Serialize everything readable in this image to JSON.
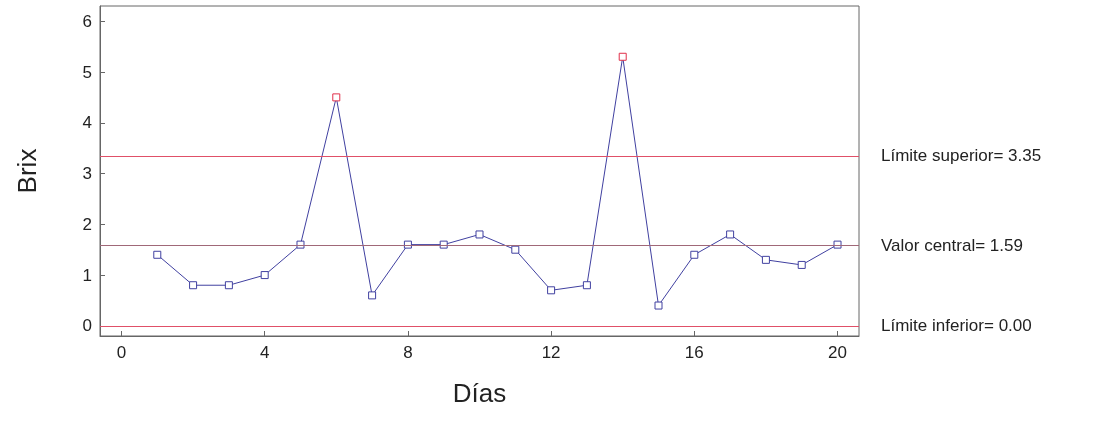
{
  "chart_data": {
    "type": "line",
    "xlabel": "Días",
    "ylabel": "Brix",
    "x": [
      1,
      2,
      3,
      4,
      5,
      6,
      7,
      8,
      9,
      10,
      11,
      12,
      13,
      14,
      15,
      16,
      17,
      18,
      19,
      20
    ],
    "series": [
      {
        "color": "#4040a0",
        "values": [
          1.4,
          0.8,
          0.8,
          1.0,
          1.6,
          4.5,
          0.6,
          1.6,
          1.6,
          1.8,
          1.5,
          0.7,
          0.8,
          5.3,
          0.4,
          1.4,
          1.8,
          1.3,
          1.2,
          1.6
        ],
        "colors": [
          "#4040a0",
          "#4040a0",
          "#4040a0",
          "#4040a0",
          "#4040a0",
          "#e0304a",
          "#4040a0",
          "#4040a0",
          "#4040a0",
          "#4040a0",
          "#4040a0",
          "#4040a0",
          "#4040a0",
          "#e0304a",
          "#4040a0",
          "#4040a0",
          "#4040a0",
          "#4040a0",
          "#4040a0",
          "#4040a0"
        ]
      }
    ],
    "xlim": [
      -0.6,
      20.6
    ],
    "xticks": [
      0,
      4,
      8,
      12,
      16,
      20
    ],
    "ylim": [
      -0.2,
      6.3
    ],
    "yticks": [
      0,
      1,
      2,
      3,
      4,
      5,
      6
    ],
    "ref_lines": [
      {
        "axis": "y",
        "value": 3.35,
        "label": "Límite superior= 3.35",
        "color": "#e05068"
      },
      {
        "axis": "y",
        "value": 1.59,
        "label": "Valor central= 1.59",
        "color": "#a06878"
      },
      {
        "axis": "y",
        "value": 0,
        "label": "Límite inferior= 0.00",
        "color": "#e05068"
      }
    ],
    "marker": "square",
    "line_style": "solid",
    "grid": false
  }
}
